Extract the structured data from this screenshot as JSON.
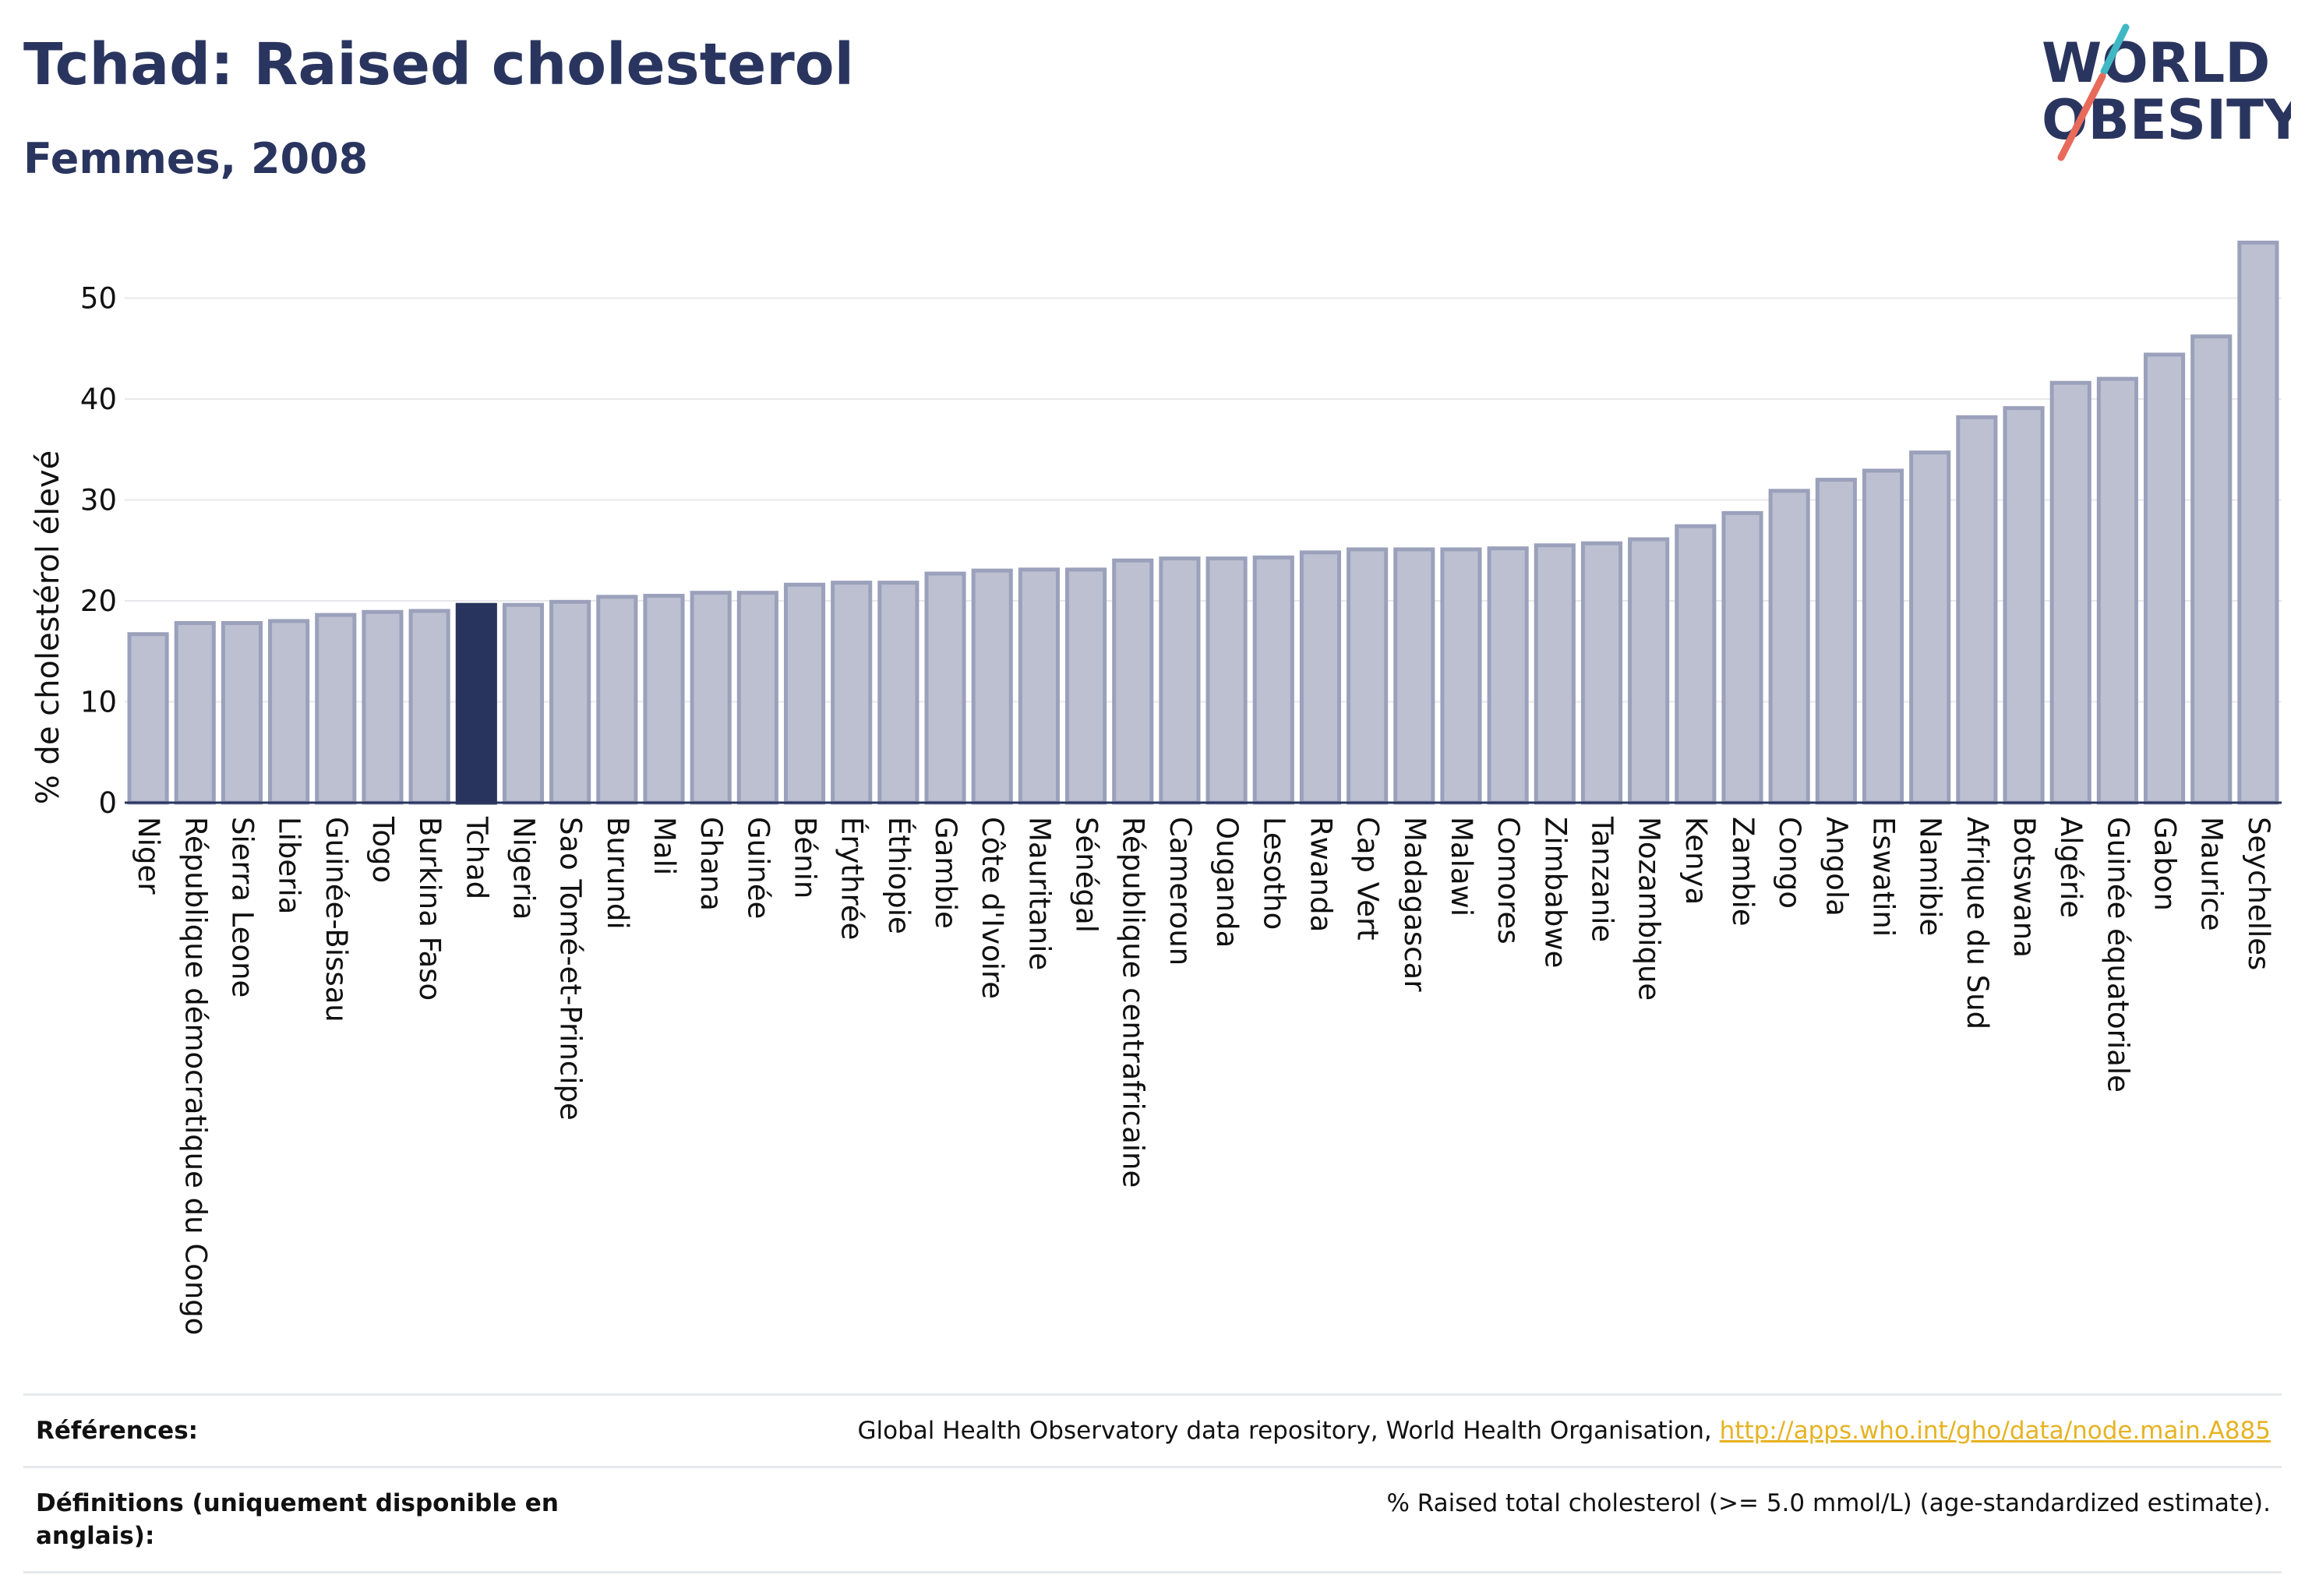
{
  "header": {
    "title": "Tchad: Raised cholesterol",
    "subtitle": "Femmes, 2008"
  },
  "logo": {
    "line1": "WORLD",
    "line2": "OBESITY"
  },
  "colors": {
    "highlight": "#28345e",
    "bar_fill": "#bcc0d1",
    "bar_stroke": "#9ba1bb",
    "title": "#2a355f",
    "link": "#e6b323",
    "logo_teal": "#3fb8c4",
    "logo_red": "#e86a5b"
  },
  "chart_data": {
    "type": "bar",
    "title": "Tchad: Raised cholesterol",
    "subtitle": "Femmes, 2008",
    "xlabel": "",
    "ylabel": "% de cholestérol élevé",
    "ylim": [
      0,
      57
    ],
    "yticks": [
      0,
      10,
      20,
      30,
      40,
      50
    ],
    "grid": true,
    "highlight": "Tchad",
    "categories": [
      "Niger",
      "République démocratique du Congo",
      "Sierra Leone",
      "Liberia",
      "Guinée-Bissau",
      "Togo",
      "Burkina Faso",
      "Tchad",
      "Nigeria",
      "Sao Tomé-et-Principe",
      "Burundi",
      "Mali",
      "Ghana",
      "Guinée",
      "Bénin",
      "Érythrée",
      "Éthiopie",
      "Gambie",
      "Côte d'Ivoire",
      "Mauritanie",
      "Sénégal",
      "République centrafricaine",
      "Cameroun",
      "Ouganda",
      "Lesotho",
      "Rwanda",
      "Cap Vert",
      "Madagascar",
      "Malawi",
      "Comores",
      "Zimbabwe",
      "Tanzanie",
      "Mozambique",
      "Kenya",
      "Zambie",
      "Congo",
      "Angola",
      "Eswatini",
      "Namibie",
      "Afrique du Sud",
      "Botswana",
      "Algérie",
      "Guinée équatoriale",
      "Gabon",
      "Maurice",
      "Seychelles"
    ],
    "values": [
      16.7,
      17.8,
      17.8,
      18.0,
      18.6,
      18.9,
      19.0,
      19.6,
      19.6,
      19.9,
      20.4,
      20.5,
      20.8,
      20.8,
      21.6,
      21.8,
      21.8,
      22.7,
      23.0,
      23.1,
      23.1,
      24.0,
      24.2,
      24.2,
      24.3,
      24.8,
      25.1,
      25.1,
      25.1,
      25.2,
      25.5,
      25.7,
      26.1,
      27.4,
      28.7,
      30.9,
      32.0,
      32.9,
      34.7,
      38.2,
      39.1,
      41.6,
      42.0,
      44.4,
      46.2,
      55.5
    ]
  },
  "footer": {
    "references_label": "Références:",
    "references_text": "Global Health Observatory data repository, World Health Organisation, ",
    "references_link": "http://apps.who.int/gho/data/node.main.A885",
    "definitions_label": "Définitions (uniquement disponible en anglais):",
    "definitions_text": "% Raised total cholesterol (>= 5.0 mmol/L) (age-standardized estimate)."
  }
}
